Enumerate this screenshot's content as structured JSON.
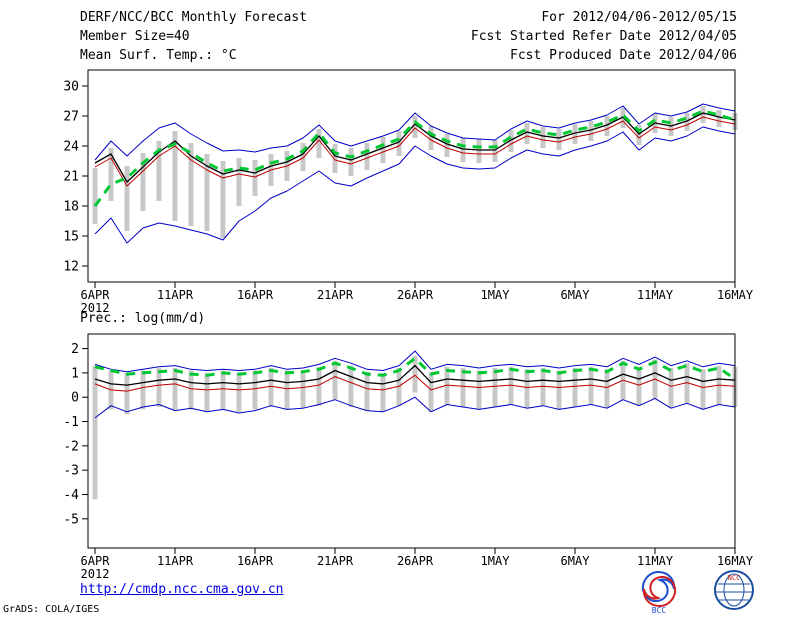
{
  "header": {
    "title": "DERF/NCC/BCC Monthly Forecast",
    "member_size": "Member Size=40",
    "variable": "Mean Surf. Temp.: °C",
    "period": "For 2012/04/06-2012/05/15",
    "refer_date": "Fcst Started Refer Date 2012/04/05",
    "produced_date": "Fcst Produced Date 2012/04/06"
  },
  "footer": {
    "url": "http://cmdp.ncc.cma.gov.cn",
    "credit": "GrADS: COLA/IGES"
  },
  "logos": {
    "bcc_label": "BCC",
    "ncc_label": "NCC"
  },
  "colors": {
    "ensemble_envelope": "#0000c8",
    "control_run": "#c00000",
    "ensemble_mean": "#000000",
    "observation": "#00c832",
    "member_bars": "#c8c8c8"
  },
  "chart_data": [
    {
      "type": "line",
      "title": "Mean Surf. Temp.: °C",
      "xlabel": "",
      "ylabel": "",
      "ylim": [
        10.4,
        31.6
      ],
      "yticks": [
        12,
        15,
        18,
        21,
        24,
        27,
        30
      ],
      "x_range": [
        0,
        40
      ],
      "xticks": [
        0,
        5,
        10,
        15,
        20,
        25,
        30,
        35,
        40
      ],
      "xtick_labels": [
        "6APR",
        "11APR",
        "16APR",
        "21APR",
        "26APR",
        "1MAY",
        "6MAY",
        "11MAY",
        "16MAY"
      ],
      "x_year_label": "2012",
      "grid": false,
      "legend": "none",
      "series": [
        {
          "name": "ensemble-max",
          "color": "#0000c8",
          "style": "solid",
          "width": 1,
          "values": [
            22.6,
            24.5,
            23.0,
            24.5,
            25.8,
            26.3,
            25.2,
            24.3,
            23.5,
            23.6,
            23.4,
            23.8,
            24.0,
            24.8,
            26.1,
            24.5,
            24.0,
            24.5,
            25.0,
            25.6,
            27.3,
            26.0,
            25.3,
            24.8,
            24.7,
            24.6,
            25.7,
            26.5,
            26.0,
            25.8,
            26.3,
            26.6,
            27.1,
            28.0,
            26.2,
            27.3,
            27.0,
            27.4,
            28.2,
            27.8,
            27.5
          ]
        },
        {
          "name": "ensemble-min",
          "color": "#0000c8",
          "style": "solid",
          "width": 1,
          "values": [
            15.2,
            16.8,
            14.3,
            15.8,
            16.3,
            16.0,
            15.6,
            15.2,
            14.6,
            16.5,
            17.5,
            18.8,
            19.5,
            20.5,
            21.5,
            20.3,
            20.0,
            20.8,
            21.5,
            22.2,
            24.0,
            23.0,
            22.2,
            21.8,
            21.7,
            21.8,
            22.8,
            23.6,
            23.2,
            23.0,
            23.6,
            24.0,
            24.5,
            25.4,
            23.6,
            24.8,
            24.5,
            25.0,
            25.9,
            25.5,
            25.2
          ]
        },
        {
          "name": "control-run",
          "color": "#c00000",
          "style": "solid",
          "width": 1,
          "values": [
            21.9,
            22.8,
            20.0,
            21.5,
            23.0,
            24.0,
            22.6,
            21.6,
            20.8,
            21.2,
            20.9,
            21.6,
            22.0,
            22.8,
            24.6,
            22.6,
            22.2,
            22.8,
            23.4,
            24.0,
            25.8,
            24.6,
            23.8,
            23.3,
            23.2,
            23.2,
            24.2,
            25.0,
            24.6,
            24.4,
            24.9,
            25.2,
            25.7,
            26.5,
            24.8,
            25.9,
            25.6,
            26.1,
            26.9,
            26.5,
            26.2
          ]
        },
        {
          "name": "ensemble-mean",
          "color": "#000000",
          "style": "solid",
          "width": 1.3,
          "values": [
            22.3,
            23.2,
            20.4,
            21.9,
            23.4,
            24.5,
            23.0,
            22.0,
            21.2,
            21.6,
            21.3,
            22.0,
            22.4,
            23.2,
            25.0,
            23.0,
            22.6,
            23.2,
            23.8,
            24.4,
            26.2,
            25.0,
            24.2,
            23.7,
            23.6,
            23.6,
            24.6,
            25.4,
            25.0,
            24.8,
            25.3,
            25.6,
            26.1,
            26.9,
            25.2,
            26.3,
            26.0,
            26.5,
            27.3,
            26.9,
            26.6
          ]
        },
        {
          "name": "observation",
          "color": "#00c832",
          "style": "dashed",
          "width": 3,
          "values": [
            18.0,
            20.2,
            20.8,
            22.3,
            23.6,
            24.2,
            23.3,
            22.3,
            21.5,
            21.8,
            21.6,
            22.3,
            22.7,
            23.5,
            25.3,
            23.3,
            22.9,
            23.5,
            24.1,
            24.7,
            26.4,
            25.2,
            24.5,
            24.0,
            23.9,
            23.9,
            24.9,
            25.7,
            25.3,
            25.1,
            25.6,
            25.9,
            26.4,
            27.1,
            25.5,
            26.6,
            26.3,
            26.8,
            27.5,
            27.1,
            26.6
          ]
        }
      ],
      "bars": {
        "name": "member-spread",
        "color": "#c8c8c8",
        "width": 5,
        "low": [
          16.2,
          18.5,
          15.5,
          17.5,
          18.5,
          16.5,
          16.0,
          15.5,
          14.8,
          18.0,
          19.0,
          20.0,
          20.5,
          21.5,
          22.8,
          21.3,
          21.0,
          21.6,
          22.3,
          23.0,
          24.8,
          23.6,
          22.9,
          22.4,
          22.3,
          22.4,
          23.4,
          24.2,
          23.8,
          23.6,
          24.2,
          24.5,
          25.0,
          25.8,
          24.1,
          25.3,
          25.0,
          25.5,
          26.3,
          25.9,
          25.6
        ],
        "high": [
          21.8,
          23.8,
          22.0,
          23.3,
          24.5,
          25.5,
          24.3,
          23.2,
          22.5,
          22.8,
          22.6,
          23.2,
          23.5,
          24.3,
          25.7,
          24.2,
          23.8,
          24.3,
          24.9,
          25.5,
          27.0,
          26.0,
          25.2,
          24.8,
          24.7,
          24.6,
          25.6,
          26.3,
          25.9,
          25.7,
          26.2,
          26.5,
          27.0,
          27.8,
          26.1,
          27.2,
          26.9,
          27.3,
          28.0,
          27.6,
          27.3
        ]
      }
    },
    {
      "type": "line",
      "title": "Prec.: log(mm/d)",
      "xlabel": "",
      "ylabel": "",
      "ylim": [
        -6.2,
        2.6
      ],
      "yticks": [
        -5,
        -4,
        -3,
        -2,
        -1,
        0,
        1,
        2
      ],
      "x_range": [
        0,
        40
      ],
      "xticks": [
        0,
        5,
        10,
        15,
        20,
        25,
        30,
        35,
        40
      ],
      "xtick_labels": [
        "6APR",
        "11APR",
        "16APR",
        "21APR",
        "26APR",
        "1MAY",
        "6MAY",
        "11MAY",
        "16MAY"
      ],
      "x_year_label": "2012",
      "grid": false,
      "legend": "none",
      "series": [
        {
          "name": "ensemble-max",
          "color": "#0000c8",
          "style": "solid",
          "width": 1,
          "values": [
            1.35,
            1.15,
            1.05,
            1.15,
            1.25,
            1.3,
            1.15,
            1.1,
            1.15,
            1.1,
            1.15,
            1.3,
            1.15,
            1.2,
            1.35,
            1.6,
            1.4,
            1.15,
            1.1,
            1.3,
            1.9,
            1.15,
            1.35,
            1.3,
            1.2,
            1.3,
            1.35,
            1.25,
            1.3,
            1.2,
            1.3,
            1.35,
            1.25,
            1.6,
            1.35,
            1.65,
            1.3,
            1.5,
            1.25,
            1.4,
            1.3
          ]
        },
        {
          "name": "ensemble-min",
          "color": "#0000c8",
          "style": "solid",
          "width": 1,
          "values": [
            -0.85,
            -0.35,
            -0.6,
            -0.4,
            -0.3,
            -0.55,
            -0.45,
            -0.6,
            -0.5,
            -0.65,
            -0.55,
            -0.35,
            -0.5,
            -0.45,
            -0.3,
            -0.1,
            -0.35,
            -0.55,
            -0.6,
            -0.35,
            0.0,
            -0.6,
            -0.3,
            -0.4,
            -0.5,
            -0.4,
            -0.3,
            -0.45,
            -0.35,
            -0.5,
            -0.4,
            -0.3,
            -0.45,
            -0.1,
            -0.35,
            -0.05,
            -0.45,
            -0.25,
            -0.5,
            -0.3,
            -0.4
          ]
        },
        {
          "name": "control-run",
          "color": "#c00000",
          "style": "solid",
          "width": 1,
          "values": [
            0.55,
            0.3,
            0.25,
            0.4,
            0.5,
            0.55,
            0.35,
            0.3,
            0.35,
            0.3,
            0.35,
            0.45,
            0.35,
            0.4,
            0.5,
            0.85,
            0.6,
            0.35,
            0.3,
            0.45,
            0.9,
            0.3,
            0.5,
            0.45,
            0.4,
            0.45,
            0.5,
            0.4,
            0.45,
            0.4,
            0.45,
            0.5,
            0.4,
            0.7,
            0.5,
            0.75,
            0.45,
            0.6,
            0.4,
            0.5,
            0.45
          ]
        },
        {
          "name": "ensemble-mean",
          "color": "#000000",
          "style": "solid",
          "width": 1.3,
          "values": [
            0.75,
            0.55,
            0.5,
            0.6,
            0.7,
            0.75,
            0.6,
            0.55,
            0.6,
            0.55,
            0.6,
            0.7,
            0.6,
            0.65,
            0.75,
            1.1,
            0.85,
            0.6,
            0.55,
            0.7,
            1.3,
            0.6,
            0.75,
            0.7,
            0.65,
            0.7,
            0.75,
            0.65,
            0.7,
            0.65,
            0.7,
            0.75,
            0.65,
            0.95,
            0.75,
            1.0,
            0.7,
            0.85,
            0.65,
            0.75,
            0.7
          ]
        },
        {
          "name": "observation",
          "color": "#00c832",
          "style": "dashed",
          "width": 3,
          "values": [
            1.25,
            1.1,
            0.95,
            1.0,
            1.05,
            1.1,
            0.95,
            0.9,
            1.0,
            0.95,
            1.0,
            1.1,
            1.0,
            1.05,
            1.15,
            1.4,
            1.2,
            0.95,
            0.9,
            1.1,
            1.6,
            0.95,
            1.1,
            1.05,
            1.0,
            1.05,
            1.15,
            1.05,
            1.1,
            1.0,
            1.1,
            1.15,
            1.05,
            1.4,
            1.15,
            1.45,
            1.1,
            1.3,
            1.05,
            1.2,
            0.75
          ]
        }
      ],
      "bars": {
        "name": "member-spread",
        "color": "#c8c8c8",
        "width": 5,
        "low": [
          -4.2,
          -0.5,
          -0.7,
          -0.5,
          -0.4,
          -0.5,
          -0.5,
          -0.6,
          -0.5,
          -0.6,
          -0.5,
          -0.4,
          -0.5,
          -0.45,
          -0.35,
          -0.1,
          -0.4,
          -0.55,
          -0.6,
          -0.35,
          0.2,
          -0.6,
          -0.3,
          -0.4,
          -0.5,
          -0.4,
          -0.3,
          -0.45,
          -0.35,
          -0.5,
          -0.4,
          -0.3,
          -0.45,
          -0.1,
          -0.35,
          -0.05,
          -0.45,
          -0.25,
          -0.5,
          -0.3,
          -0.4
        ],
        "high": [
          1.3,
          1.1,
          1.0,
          1.1,
          1.2,
          1.2,
          1.1,
          1.0,
          1.1,
          1.0,
          1.1,
          1.2,
          1.1,
          1.1,
          1.25,
          1.5,
          1.3,
          1.05,
          1.0,
          1.2,
          1.7,
          1.05,
          1.25,
          1.2,
          1.1,
          1.2,
          1.25,
          1.15,
          1.2,
          1.1,
          1.2,
          1.25,
          1.15,
          1.5,
          1.25,
          1.55,
          1.2,
          1.4,
          1.15,
          1.3,
          1.25
        ]
      }
    }
  ]
}
